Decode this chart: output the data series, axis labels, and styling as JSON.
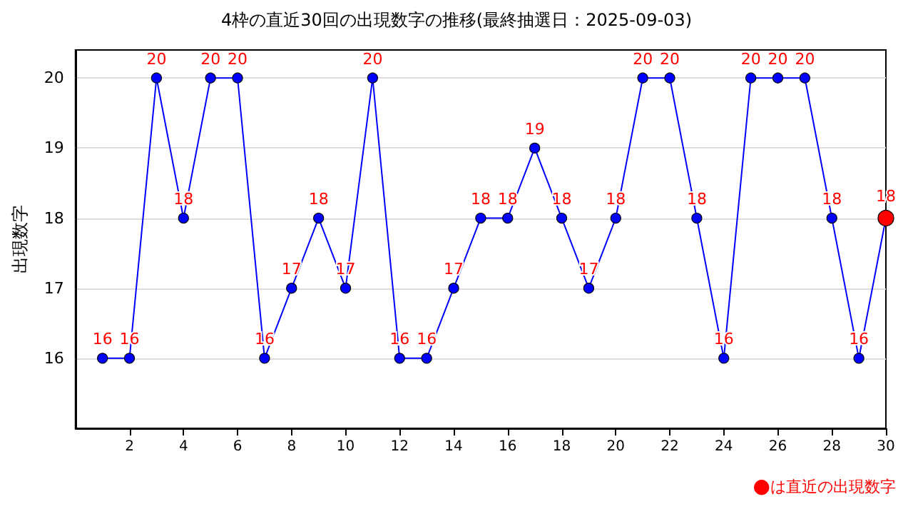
{
  "chart_data": {
    "type": "line",
    "title": "4枠の直近30回の出現数字の推移(最終抽選日：2025-09-03)",
    "ylabel": "出現数字",
    "x": [
      1,
      2,
      3,
      4,
      5,
      6,
      7,
      8,
      9,
      10,
      11,
      12,
      13,
      14,
      15,
      16,
      17,
      18,
      19,
      20,
      21,
      22,
      23,
      24,
      25,
      26,
      27,
      28,
      29,
      30
    ],
    "series": [
      {
        "color": "#0000ff",
        "values": [
          16,
          16,
          20,
          18,
          20,
          20,
          16,
          17,
          18,
          17,
          20,
          16,
          16,
          17,
          18,
          18,
          19,
          18,
          17,
          18,
          20,
          20,
          18,
          16,
          20,
          20,
          20,
          18,
          16,
          18
        ],
        "colors": [
          "#0000ff",
          "#0000ff",
          "#0000ff",
          "#0000ff",
          "#0000ff",
          "#0000ff",
          "#0000ff",
          "#0000ff",
          "#0000ff",
          "#0000ff",
          "#0000ff",
          "#0000ff",
          "#0000ff",
          "#0000ff",
          "#0000ff",
          "#0000ff",
          "#0000ff",
          "#0000ff",
          "#0000ff",
          "#0000ff",
          "#0000ff",
          "#0000ff",
          "#0000ff",
          "#0000ff",
          "#0000ff",
          "#0000ff",
          "#0000ff",
          "#0000ff",
          "#0000ff",
          "#ff0000"
        ]
      }
    ],
    "xlim": [
      0,
      30
    ],
    "xticks": [
      2,
      4,
      6,
      8,
      10,
      12,
      14,
      16,
      18,
      20,
      22,
      24,
      26,
      28,
      30
    ],
    "ylim": [
      15,
      20.4
    ],
    "yticks": [
      16,
      17,
      18,
      19,
      20
    ],
    "grid": "y",
    "marker": "circle",
    "line_style": "solid",
    "data_labels": true,
    "annotations": [
      "●は直近の出現数字"
    ]
  }
}
